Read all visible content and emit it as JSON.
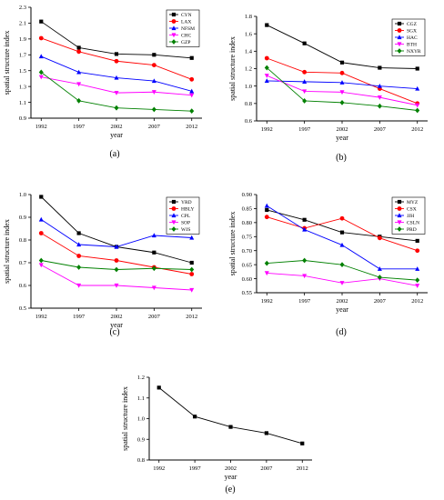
{
  "chart_data": [
    {
      "type": "line",
      "panel_label": "(a)",
      "x": [
        1992,
        1997,
        2002,
        2007,
        2012
      ],
      "xlabel": "year",
      "ylabel": "spatial structure index",
      "ylim": [
        0.9,
        2.3
      ],
      "yticks": [
        0.9,
        1.1,
        1.3,
        1.5,
        1.7,
        1.9,
        2.1,
        2.3
      ],
      "ytick_decimals": 1,
      "legend_position": "top-right",
      "series": [
        {
          "name": "CYN",
          "color": "#000000",
          "marker": "square",
          "values": [
            2.12,
            1.79,
            1.71,
            1.7,
            1.66
          ]
        },
        {
          "name": "LAX",
          "color": "#ff0000",
          "marker": "circle",
          "values": [
            1.91,
            1.74,
            1.62,
            1.57,
            1.39
          ]
        },
        {
          "name": "NFSM",
          "color": "#0000ff",
          "marker": "triangle",
          "values": [
            1.68,
            1.48,
            1.41,
            1.37,
            1.24
          ]
        },
        {
          "name": "CHC",
          "color": "#ff00ff",
          "marker": "tri-down",
          "values": [
            1.42,
            1.33,
            1.22,
            1.23,
            1.19
          ]
        },
        {
          "name": "GZP",
          "color": "#008000",
          "marker": "diamond",
          "values": [
            1.48,
            1.12,
            1.03,
            1.01,
            0.99
          ]
        }
      ]
    },
    {
      "type": "line",
      "panel_label": "(b)",
      "x": [
        1992,
        1997,
        2002,
        2007,
        2012
      ],
      "xlabel": "year",
      "ylabel": "spatial structure index",
      "ylim": [
        0.6,
        1.8
      ],
      "yticks": [
        0.6,
        0.8,
        1.0,
        1.2,
        1.4,
        1.6,
        1.8
      ],
      "ytick_decimals": 1,
      "legend_position": "top-right",
      "series": [
        {
          "name": "CGZ",
          "color": "#000000",
          "marker": "square",
          "values": [
            1.7,
            1.49,
            1.27,
            1.21,
            1.2
          ]
        },
        {
          "name": "SGX",
          "color": "#ff0000",
          "marker": "circle",
          "values": [
            1.32,
            1.16,
            1.15,
            0.97,
            0.8
          ]
        },
        {
          "name": "HAC",
          "color": "#0000ff",
          "marker": "triangle",
          "values": [
            1.06,
            1.05,
            1.04,
            1.0,
            0.97
          ]
        },
        {
          "name": "BTH",
          "color": "#ff00ff",
          "marker": "tri-down",
          "values": [
            1.12,
            0.94,
            0.93,
            0.87,
            0.78
          ]
        },
        {
          "name": "NXYR",
          "color": "#008000",
          "marker": "diamond",
          "values": [
            1.21,
            0.83,
            0.81,
            0.77,
            0.72
          ]
        }
      ]
    },
    {
      "type": "line",
      "panel_label": "(c)",
      "x": [
        1992,
        1997,
        2002,
        2007,
        2012
      ],
      "xlabel": "year",
      "ylabel": "spatial structure index",
      "ylim": [
        0.5,
        1.0
      ],
      "yticks": [
        0.5,
        0.6,
        0.7,
        0.8,
        0.9,
        1.0
      ],
      "ytick_decimals": 1,
      "legend_position": "top-right",
      "series": [
        {
          "name": "YRD",
          "color": "#000000",
          "marker": "square",
          "values": [
            0.99,
            0.83,
            0.77,
            0.745,
            0.7
          ]
        },
        {
          "name": "HBLY",
          "color": "#ff0000",
          "marker": "circle",
          "values": [
            0.83,
            0.73,
            0.71,
            0.68,
            0.65
          ]
        },
        {
          "name": "CPL",
          "color": "#0000ff",
          "marker": "triangle",
          "values": [
            0.89,
            0.78,
            0.77,
            0.82,
            0.81
          ]
        },
        {
          "name": "SOP",
          "color": "#ff00ff",
          "marker": "tri-down",
          "values": [
            0.69,
            0.6,
            0.6,
            0.59,
            0.58
          ]
        },
        {
          "name": "WJS",
          "color": "#008000",
          "marker": "diamond",
          "values": [
            0.71,
            0.68,
            0.67,
            0.675,
            0.67
          ]
        }
      ]
    },
    {
      "type": "line",
      "panel_label": "(d)",
      "x": [
        1992,
        1997,
        2002,
        2007,
        2012
      ],
      "xlabel": "year",
      "ylabel": "spatial structure index",
      "ylim": [
        0.55,
        0.9
      ],
      "yticks": [
        0.55,
        0.6,
        0.65,
        0.7,
        0.75,
        0.8,
        0.85,
        0.9
      ],
      "ytick_decimals": 2,
      "legend_position": "top-right",
      "series": [
        {
          "name": "MYZ",
          "color": "#000000",
          "marker": "square",
          "values": [
            0.845,
            0.81,
            0.765,
            0.75,
            0.735
          ]
        },
        {
          "name": "CSX",
          "color": "#ff0000",
          "marker": "circle",
          "values": [
            0.82,
            0.78,
            0.815,
            0.745,
            0.7
          ]
        },
        {
          "name": "JJH",
          "color": "#0000ff",
          "marker": "triangle",
          "values": [
            0.86,
            0.775,
            0.72,
            0.635,
            0.635
          ]
        },
        {
          "name": "CSLN",
          "color": "#ff00ff",
          "marker": "tri-down",
          "values": [
            0.62,
            0.61,
            0.585,
            0.6,
            0.575
          ]
        },
        {
          "name": "PRD",
          "color": "#008000",
          "marker": "diamond",
          "values": [
            0.655,
            0.665,
            0.65,
            0.605,
            0.595
          ]
        }
      ]
    },
    {
      "type": "line",
      "panel_label": "(e)",
      "x": [
        1992,
        1997,
        2002,
        2007,
        2012
      ],
      "xlabel": "year",
      "ylabel": "spatial structure index",
      "ylim": [
        0.8,
        1.2
      ],
      "yticks": [
        0.8,
        0.9,
        1.0,
        1.1,
        1.2
      ],
      "ytick_decimals": 1,
      "legend_position": "none",
      "series": [
        {
          "name": "",
          "color": "#000000",
          "marker": "square",
          "values": [
            1.15,
            1.01,
            0.96,
            0.93,
            0.88
          ]
        }
      ]
    }
  ]
}
